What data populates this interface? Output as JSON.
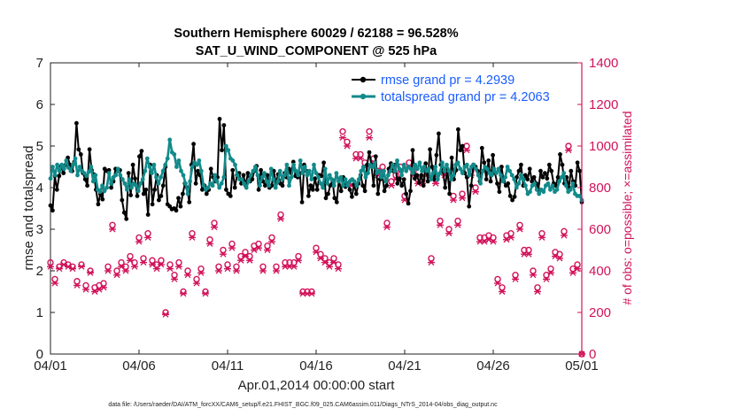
{
  "chart_data": {
    "type": "line",
    "title_line1": "Southern Hemisphere 60029 / 62188 = 96.528%",
    "title_line2": "SAT_U_WIND_COMPONENT @ 525 hPa",
    "ylabel": "rmse and totalspread",
    "y2label": "# of obs: o=possible; ×=assimilated",
    "xlabel": "Apr.01,2014 00:00:00 start",
    "footer": "data file: /Users/raeder/DAI/ATM_forcXX/CAM6_setup/f.e21.FHIST_BGC.f09_025.CAM6assim.011/Diags_NTrS_2014-04/obs_diag_output.nc",
    "xlim": [
      0,
      30
    ],
    "ylim": [
      0,
      7
    ],
    "y2lim": [
      0,
      1400
    ],
    "xticks": [
      0,
      5,
      10,
      15,
      20,
      25,
      30
    ],
    "xtick_labels": [
      "04/01",
      "04/06",
      "04/11",
      "04/16",
      "04/21",
      "04/26",
      "05/01"
    ],
    "yticks": [
      0,
      1,
      2,
      3,
      4,
      5,
      6,
      7
    ],
    "ytick_labels": [
      "0",
      "1",
      "2",
      "3",
      "4",
      "5",
      "6",
      "7"
    ],
    "y2ticks": [
      0,
      200,
      400,
      600,
      800,
      1000,
      1200,
      1400
    ],
    "y2tick_labels": [
      "0",
      "200",
      "400",
      "600",
      "800",
      "1000",
      "1200",
      "1400"
    ],
    "colors": {
      "rmse": "#000000",
      "spread": "#128a8a",
      "obs": "#d1135a",
      "legend_text": "#1a5cff"
    },
    "series": [
      {
        "name": "rmse grand pr = 4.2939",
        "values": [
          3.57,
          3.45,
          4.28,
          3.95,
          4.28,
          4.52,
          4.35,
          4.55,
          4.72,
          4.55,
          4.4,
          4.62,
          5.55,
          4.92,
          4.8,
          4.35,
          4.2,
          4.05,
          4.92,
          4.42,
          4.32,
          3.95,
          3.6,
          3.85,
          3.72,
          4.45,
          4.4,
          4.42,
          4.0,
          4.15,
          4.45,
          4.4,
          4.42,
          3.7,
          3.4,
          3.25,
          4.35,
          3.82,
          4.55,
          4.22,
          3.8,
          4.75,
          4.88,
          3.85,
          3.95,
          3.35,
          4.55,
          3.6,
          3.95,
          4.3,
          3.7,
          3.8,
          4.05,
          4.5,
          3.6,
          3.55,
          3.48,
          3.5,
          3.45,
          3.75,
          3.55,
          3.85,
          4.1,
          4.0,
          3.65,
          4.55,
          5.05,
          4.1,
          4.4,
          4.3,
          3.95,
          4.05,
          3.85,
          3.95,
          4.45,
          4.25,
          4.15,
          4.25,
          5.65,
          4.9,
          5.5,
          3.95,
          3.85,
          3.8,
          4.42,
          4.0,
          4.3,
          4.35,
          4.1,
          4.3,
          4.05,
          4.35,
          4.15,
          4.2,
          4.4,
          4.52,
          3.95,
          4.42,
          4.15,
          4.05,
          4.3,
          4.0,
          4.05,
          4.4,
          4.1,
          4.32,
          4.1,
          4.05,
          4.35,
          4.25,
          4.45,
          4.35,
          4.62,
          4.28,
          4.25,
          4.35,
          3.65,
          4.55,
          4.4,
          3.8,
          4.05,
          3.95,
          4.22,
          3.95,
          4.3,
          4.28,
          4.6,
          3.75,
          3.85,
          4.05,
          4.18,
          3.75,
          3.65,
          4.2,
          3.92,
          4.25,
          4.02,
          4.1,
          3.95,
          3.78,
          4.08,
          3.85,
          4.1,
          4.3,
          4.05,
          3.92,
          4.55,
          4.85,
          4.55,
          4.05,
          4.75,
          3.85,
          4.2,
          4.3,
          3.92,
          4.05,
          4.45,
          4.58,
          4.4,
          4.55,
          4.1,
          4.22,
          4.05,
          4.2,
          3.85,
          3.62,
          3.92,
          4.9,
          4.22,
          4.3,
          4.12,
          4.3,
          4.05,
          4.58,
          4.15,
          4.92,
          4.5,
          4.2,
          4.78,
          5.3,
          4.55,
          4.38,
          4.0,
          4.45,
          3.85,
          4.72,
          4.2,
          4.42,
          5.4,
          4.9,
          5.0,
          4.35,
          4.25,
          3.55,
          4.05,
          4.55,
          4.5,
          4.4,
          4.15,
          4.95,
          4.6,
          4.2,
          4.65,
          4.15,
          4.78,
          4.35,
          4.1,
          3.9,
          4.5,
          4.15,
          4.05,
          4.1,
          3.8,
          3.7,
          3.78,
          4.25,
          4.4,
          4.55,
          4.05,
          4.3,
          4.2,
          4.45,
          4.15,
          4.25,
          4.1,
          3.95,
          4.4,
          4.25,
          4.35,
          4.22,
          4.55,
          4.4,
          4.1,
          4.05,
          4.25,
          4.8,
          4.55,
          4.1,
          4.25,
          4.0,
          4.4,
          4.15,
          4.05,
          4.6,
          4.4,
          3.65
        ]
      },
      {
        "name": "totalspread grand pr = 4.2063",
        "values": [
          4.22,
          4.5,
          4.3,
          4.55,
          4.4,
          4.55,
          4.45,
          4.65,
          4.48,
          4.4,
          4.55,
          4.7,
          4.3,
          4.5,
          4.4,
          4.35,
          4.28,
          4.38,
          4.5,
          4.15,
          4.3,
          3.95,
          3.9,
          4.05,
          3.92,
          4.0,
          4.35,
          4.1,
          4.25,
          4.3,
          4.45,
          4.3,
          4.2,
          4.1,
          3.95,
          4.2,
          4.0,
          4.1,
          4.05,
          3.92,
          4.1,
          4.2,
          4.4,
          4.7,
          4.5,
          4.35,
          4.55,
          4.25,
          4.1,
          4.25,
          4.4,
          4.55,
          4.7,
          5.15,
          4.85,
          4.8,
          4.5,
          4.65,
          4.4,
          4.3,
          4.1,
          3.85,
          4.15,
          4.5,
          4.6,
          4.55,
          4.65,
          4.4,
          4.05,
          3.95,
          4.0,
          4.1,
          4.05,
          4.3,
          4.15,
          4.0,
          4.1,
          4.25,
          5.0,
          4.9,
          4.7,
          4.65,
          4.55,
          4.3,
          4.2,
          4.2,
          4.1,
          4.0,
          4.15,
          4.3,
          4.4,
          4.5,
          4.3,
          4.05,
          4.25,
          4.35,
          4.15,
          4.05,
          4.45,
          4.2,
          4.0,
          4.15,
          4.4,
          4.2,
          4.3,
          4.55,
          4.05,
          4.25,
          4.55,
          4.4,
          4.3,
          4.65,
          4.35,
          4.5,
          4.3,
          4.4,
          4.2,
          4.55,
          4.35,
          4.25,
          4.1,
          4.0,
          4.45,
          4.1,
          4.3,
          4.2,
          4.05,
          4.35,
          4.15,
          4.25,
          4.05,
          4.2,
          4.05,
          4.15,
          4.2,
          4.15,
          4.05,
          4.2,
          4.4,
          4.5,
          4.25,
          4.35,
          4.55,
          4.5,
          4.6,
          4.35,
          4.4,
          4.25,
          4.4,
          4.15,
          4.3,
          4.4,
          4.55,
          4.4,
          4.65,
          4.45,
          4.3,
          4.55,
          4.4,
          4.5,
          4.45,
          4.35,
          4.55,
          4.45,
          4.6,
          4.4,
          4.5,
          4.4,
          4.45,
          4.2,
          4.35,
          4.5,
          4.2,
          4.35,
          4.6,
          4.4,
          4.55,
          4.4,
          4.2,
          4.3,
          4.55,
          4.6,
          4.45,
          4.35,
          4.5,
          4.55,
          4.3,
          4.5,
          4.55,
          4.45,
          4.3,
          4.1,
          4.4,
          4.5,
          4.45,
          4.35,
          4.3,
          4.45,
          4.35,
          4.45,
          4.3,
          4.15,
          4.25,
          4.5,
          4.4,
          4.3,
          4.2,
          4.0,
          4.1,
          4.3,
          4.2,
          4.05,
          3.85,
          3.9,
          4.05,
          4.1,
          3.95,
          3.85,
          3.95,
          3.9,
          4.05,
          4.1,
          3.95,
          4.05,
          3.9,
          3.95,
          4.15,
          4.25,
          4.35,
          4.05,
          3.9,
          3.95,
          4.1,
          3.85,
          3.8,
          3.8,
          3.7
        ]
      }
    ],
    "legend": [
      {
        "label": "rmse grand pr = 4.2939"
      },
      {
        "label": "totalspread grand pr = 4.2063"
      }
    ],
    "obs_series": {
      "name": "# of obs",
      "x_day": [
        0.0,
        0.25,
        0.5,
        0.75,
        1.0,
        1.25,
        1.5,
        1.75,
        2.0,
        2.25,
        2.5,
        2.75,
        3.0,
        3.25,
        3.5,
        3.75,
        4.0,
        4.25,
        4.5,
        4.75,
        5.0,
        5.25,
        5.5,
        5.75,
        6.0,
        6.25,
        6.5,
        6.75,
        7.0,
        7.25,
        7.5,
        7.75,
        8.0,
        8.25,
        8.5,
        8.75,
        9.0,
        9.25,
        9.5,
        9.75,
        10.0,
        10.25,
        10.5,
        10.75,
        11.0,
        11.25,
        11.5,
        11.75,
        12.0,
        12.25,
        12.5,
        12.75,
        13.0,
        13.25,
        13.5,
        13.75,
        14.0,
        14.25,
        14.5,
        14.75,
        15.0,
        15.25,
        15.5,
        15.75,
        16.0,
        16.25,
        16.5,
        16.75,
        17.0,
        17.25,
        17.5,
        17.75,
        18.0,
        18.25,
        18.5,
        18.75,
        19.0,
        19.25,
        19.5,
        19.75,
        20.0,
        20.25,
        20.5,
        20.75,
        21.0,
        21.25,
        21.5,
        21.75,
        22.0,
        22.25,
        22.5,
        22.75,
        23.0,
        23.25,
        23.5,
        23.75,
        24.0,
        24.25,
        24.5,
        24.75,
        25.0,
        25.25,
        25.5,
        25.75,
        26.0,
        26.25,
        26.5,
        26.75,
        27.0,
        27.25,
        27.5,
        27.75,
        28.0,
        28.25,
        28.5,
        28.75,
        29.0,
        29.25,
        29.5,
        29.75,
        30.0
      ],
      "possible": [
        440,
        360,
        420,
        440,
        430,
        420,
        350,
        430,
        330,
        400,
        320,
        330,
        340,
        420,
        620,
        400,
        440,
        420,
        470,
        440,
        560,
        460,
        580,
        450,
        430,
        450,
        200,
        430,
        380,
        440,
        300,
        400,
        580,
        360,
        410,
        300,
        550,
        630,
        420,
        500,
        430,
        530,
        420,
        470,
        490,
        470,
        520,
        530,
        420,
        520,
        560,
        420,
        670,
        440,
        440,
        440,
        470,
        300,
        300,
        300,
        510,
        480,
        460,
        440,
        460,
        430,
        1070,
        1020,
        830,
        960,
        960,
        920,
        1070,
        940,
        880,
        900,
        630,
        830,
        860,
        900,
        760,
        920,
        880,
        840,
        840,
        880,
        460,
        840,
        640,
        880,
        600,
        760,
        640,
        770,
        1000,
        880,
        800,
        560,
        560,
        570,
        560,
        360,
        320,
        570,
        580,
        380,
        620,
        500,
        500,
        400,
        320,
        580,
        380,
        410,
        490,
        480,
        590,
        1000,
        410,
        430,
        0
      ],
      "assimilated": [
        420,
        340,
        410,
        430,
        420,
        410,
        330,
        420,
        310,
        390,
        300,
        310,
        320,
        400,
        600,
        380,
        420,
        400,
        450,
        420,
        540,
        440,
        560,
        430,
        410,
        430,
        190,
        410,
        360,
        420,
        290,
        380,
        560,
        340,
        390,
        290,
        530,
        610,
        400,
        480,
        410,
        510,
        400,
        450,
        470,
        450,
        500,
        510,
        400,
        500,
        540,
        400,
        650,
        420,
        420,
        420,
        450,
        290,
        290,
        290,
        490,
        460,
        440,
        420,
        440,
        410,
        1040,
        1000,
        810,
        940,
        940,
        900,
        1040,
        920,
        860,
        880,
        610,
        810,
        840,
        880,
        740,
        900,
        860,
        820,
        820,
        860,
        440,
        820,
        620,
        860,
        580,
        740,
        620,
        750,
        980,
        860,
        780,
        540,
        540,
        550,
        540,
        340,
        300,
        550,
        560,
        360,
        600,
        480,
        480,
        380,
        300,
        560,
        360,
        390,
        470,
        460,
        570,
        980,
        390,
        410,
        0
      ]
    }
  }
}
